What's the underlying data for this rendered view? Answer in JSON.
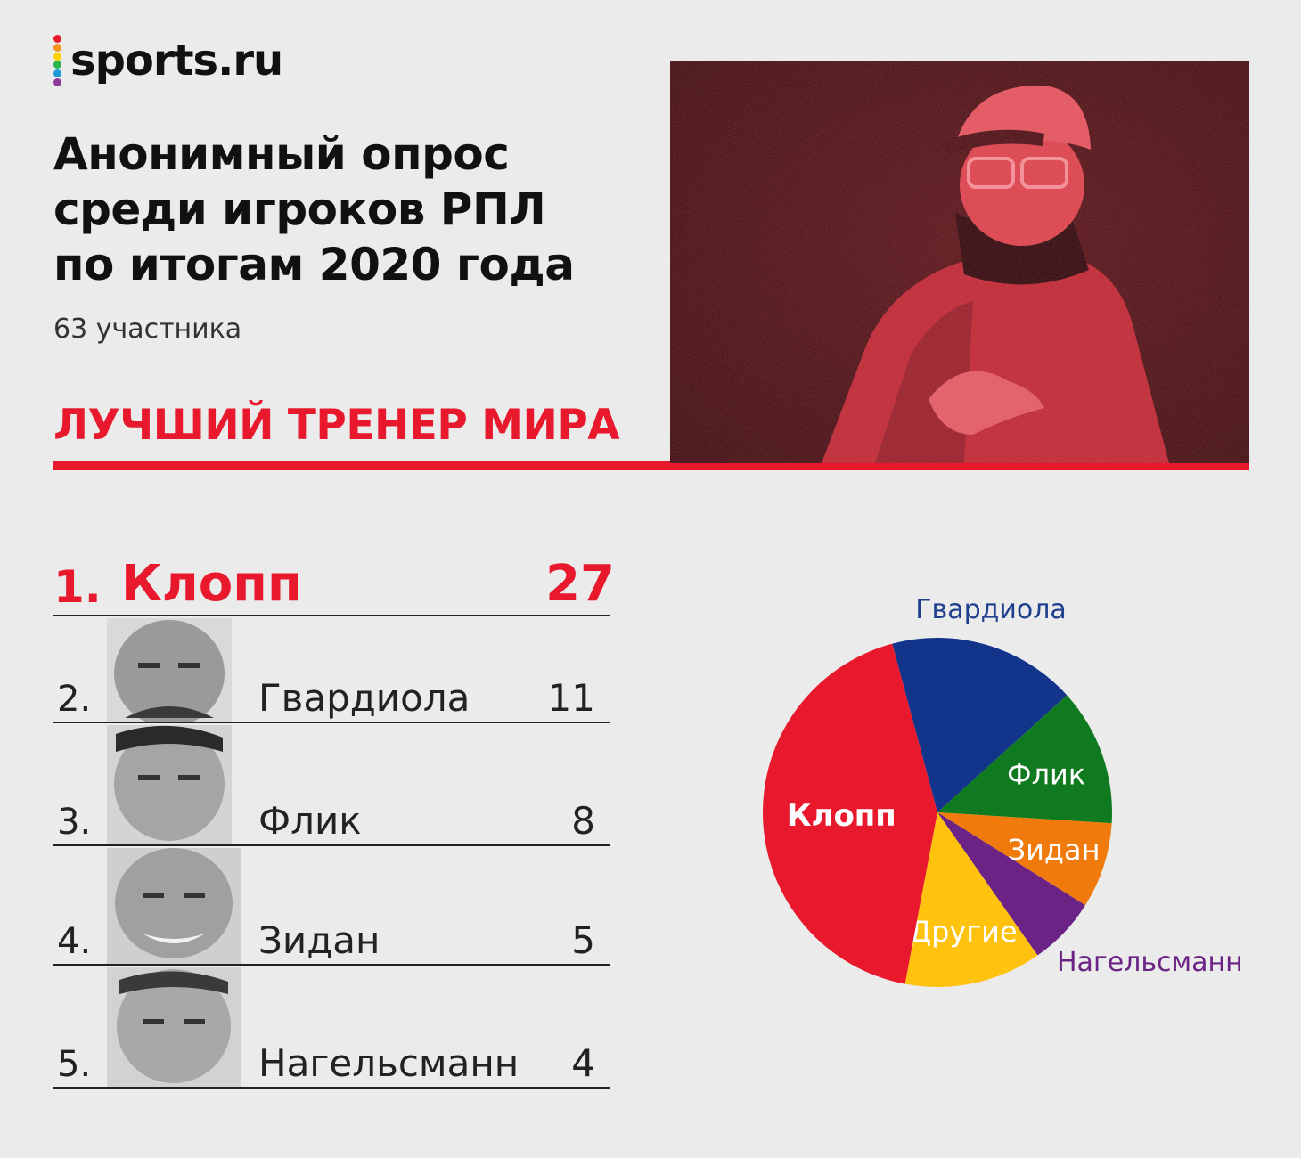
{
  "brand": {
    "name": "sports.ru",
    "dot_colors": [
      "#e8192c",
      "#f7941d",
      "#ffd200",
      "#2eb34a",
      "#1e9ad6",
      "#8e3a9b"
    ]
  },
  "header": {
    "title_lines": [
      "Анонимный опрос",
      "среди игроков РПЛ",
      "по итогам 2020 года"
    ],
    "participants": "63 участника",
    "section_title": "ЛУЧШИЙ ТРЕНЕР МИРА"
  },
  "colors": {
    "accent": "#e8192c",
    "background": "#ebebeb"
  },
  "ranking": [
    {
      "rank": "1.",
      "name": "Клопп",
      "votes": "27"
    },
    {
      "rank": "2.",
      "name": "Гвардиола",
      "votes": "11"
    },
    {
      "rank": "3.",
      "name": "Флик",
      "votes": "8"
    },
    {
      "rank": "4.",
      "name": "Зидан",
      "votes": "5"
    },
    {
      "rank": "5.",
      "name": "Нагельсманн",
      "votes": "4"
    }
  ],
  "chart_data": {
    "type": "pie",
    "title": "",
    "slices": [
      {
        "label": "Гвардиола",
        "value": 11,
        "color": "#12348a",
        "label_color": "#1f3f8f",
        "label_inside": false
      },
      {
        "label": "Флик",
        "value": 8,
        "color": "#0f7a1f",
        "label_color": "#ffffff",
        "label_inside": true
      },
      {
        "label": "Зидан",
        "value": 5,
        "color": "#f07a0c",
        "label_color": "#ffffff",
        "label_inside": true
      },
      {
        "label": "Нагельсманн",
        "value": 4,
        "color": "#6b2486",
        "label_color": "#6b2486",
        "label_inside": false
      },
      {
        "label": "Другие",
        "value": 8,
        "color": "#ffc20e",
        "label_color": "#ffffff",
        "label_inside": true
      },
      {
        "label": "Клопп",
        "value": 27,
        "color": "#e8192c",
        "label_color": "#ffffff",
        "label_inside": true
      }
    ]
  }
}
